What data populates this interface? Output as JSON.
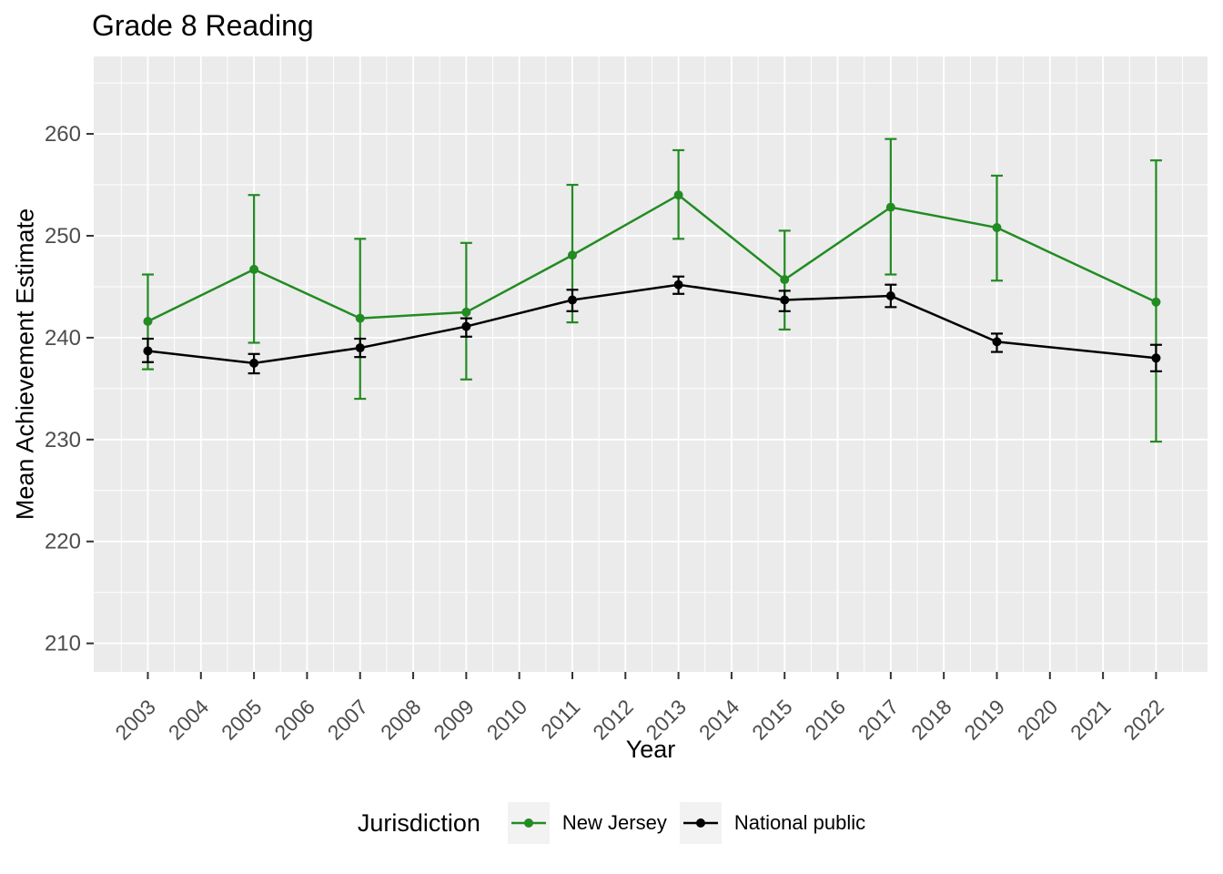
{
  "chart_data": {
    "type": "line",
    "title": "Grade 8 Reading",
    "xlabel": "Year",
    "ylabel": "Mean Achievement Estimate",
    "legend_title": "Jurisdiction",
    "legend_position": "bottom",
    "grid": true,
    "x_ticks": [
      2003,
      2004,
      2005,
      2006,
      2007,
      2008,
      2009,
      2010,
      2011,
      2012,
      2013,
      2014,
      2015,
      2016,
      2017,
      2018,
      2019,
      2020,
      2021,
      2022
    ],
    "y_ticks": [
      210,
      220,
      230,
      240,
      250,
      260
    ],
    "xlim": [
      2001.98,
      2022.97
    ],
    "ylim": [
      207.2,
      267.6
    ],
    "colors": {
      "panel": "#EBEBEB",
      "grid": "#FFFFFF",
      "tick": "#333333",
      "axis_text": "#4D4D4D",
      "legend_key_bg": "#F2F2F2"
    },
    "series": [
      {
        "name": "New Jersey",
        "color": "#228B22",
        "x": [
          2003,
          2005,
          2007,
          2009,
          2011,
          2013,
          2015,
          2017,
          2019,
          2022
        ],
        "y": [
          241.6,
          246.7,
          241.9,
          242.5,
          248.1,
          254.0,
          245.7,
          252.8,
          250.8,
          243.5
        ],
        "ci_low": [
          236.9,
          239.5,
          234.0,
          235.9,
          241.5,
          249.7,
          240.8,
          246.2,
          245.6,
          229.8
        ],
        "ci_high": [
          246.2,
          254.0,
          249.7,
          249.3,
          255.0,
          258.4,
          250.5,
          259.5,
          255.9,
          257.4
        ]
      },
      {
        "name": "National public",
        "color": "#000000",
        "x": [
          2003,
          2005,
          2007,
          2009,
          2011,
          2013,
          2015,
          2017,
          2019,
          2022
        ],
        "y": [
          238.7,
          237.5,
          239.0,
          241.1,
          243.7,
          245.2,
          243.7,
          244.1,
          239.6,
          238.0
        ],
        "ci_low": [
          237.6,
          236.5,
          238.1,
          240.1,
          242.6,
          244.3,
          242.6,
          243.0,
          238.6,
          236.7
        ],
        "ci_high": [
          239.9,
          238.4,
          239.9,
          241.9,
          244.7,
          246.0,
          244.6,
          245.2,
          240.4,
          239.3
        ]
      }
    ]
  }
}
